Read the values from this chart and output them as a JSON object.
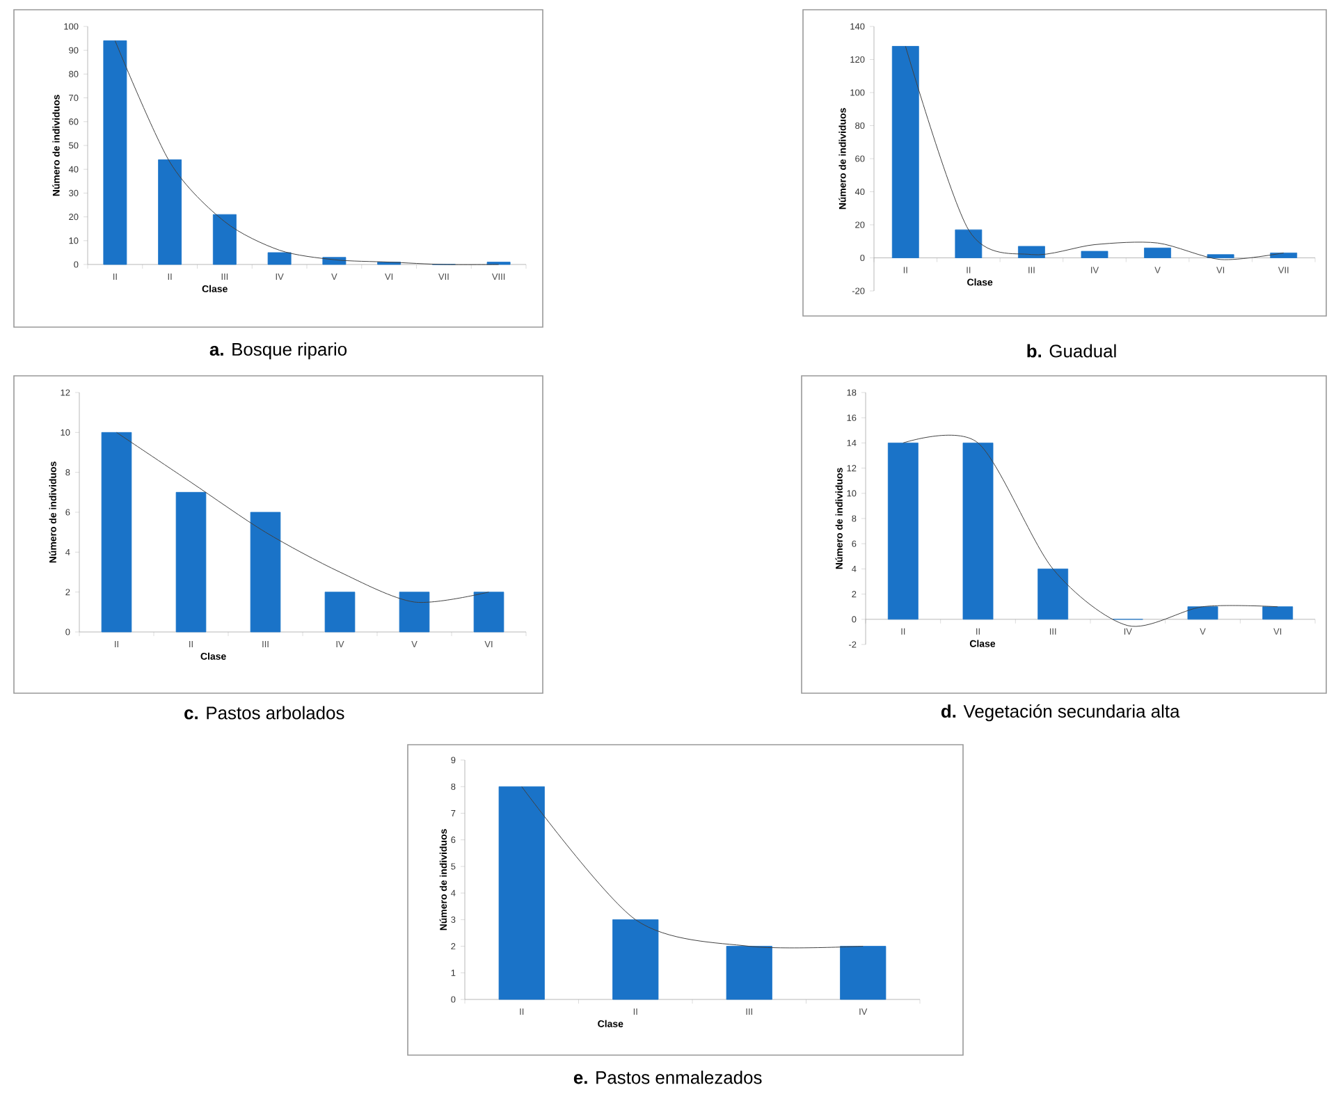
{
  "chart_data": [
    {
      "type": "bar",
      "title": "**a.** Bosque ripario",
      "xlabel": "Clase",
      "ylabel": "Número de individuos",
      "categories": [
        "II",
        "II",
        "III",
        "IV",
        "V",
        "VI",
        "VII",
        "VIII"
      ],
      "ylim": [
        0,
        100
      ],
      "yticks": [
        0,
        10,
        20,
        30,
        40,
        50,
        60,
        70,
        80,
        90,
        100
      ],
      "series": [
        {
          "color": "#1a73c8",
          "values": [
            94,
            44,
            21,
            5,
            3,
            1,
            0,
            1
          ]
        },
        {
          "type": "line",
          "color": "#404040",
          "values": [
            94,
            43,
            18,
            6,
            2,
            1,
            0,
            0
          ]
        }
      ]
    },
    {
      "type": "bar",
      "title": "**b.** Guadual",
      "xlabel": "Clase",
      "ylabel": "Número de individuos",
      "categories": [
        "II",
        "II",
        "III",
        "IV",
        "V",
        "VI",
        "VII"
      ],
      "ylim": [
        -20,
        140
      ],
      "yticks": [
        -20,
        0,
        20,
        40,
        60,
        80,
        100,
        120,
        140
      ],
      "series": [
        {
          "color": "#1a73c8",
          "values": [
            128,
            17,
            7,
            4,
            6,
            2,
            3
          ]
        },
        {
          "type": "line",
          "color": "#404040",
          "values": [
            128,
            17,
            2,
            8,
            9,
            -1,
            3
          ]
        }
      ]
    },
    {
      "type": "bar",
      "title": "**c.** Pastos arbolados",
      "xlabel": "Clase",
      "ylabel": "Número de individuos",
      "categories": [
        "II",
        "II",
        "III",
        "IV",
        "V",
        "VI"
      ],
      "ylim": [
        0,
        12
      ],
      "yticks": [
        0,
        2,
        4,
        6,
        8,
        10,
        12
      ],
      "series": [
        {
          "color": "#1a73c8",
          "values": [
            10,
            7,
            6,
            2,
            2,
            2
          ]
        },
        {
          "type": "line",
          "color": "#404040",
          "values": [
            10,
            7.5,
            5,
            3,
            1.5,
            2
          ]
        }
      ]
    },
    {
      "type": "bar",
      "title": "**d.** Vegetación secundaria alta",
      "xlabel": "Clase",
      "ylabel": "Número de individuos",
      "categories": [
        "II",
        "II",
        "III",
        "IV",
        "V",
        "VI"
      ],
      "ylim": [
        -2,
        18
      ],
      "yticks": [
        -2,
        0,
        2,
        4,
        6,
        8,
        10,
        12,
        14,
        16,
        18
      ],
      "series": [
        {
          "color": "#1a73c8",
          "values": [
            14,
            14,
            4,
            0,
            1,
            1
          ]
        },
        {
          "type": "line",
          "color": "#404040",
          "values": [
            14,
            14,
            4,
            -0.5,
            1,
            1
          ]
        }
      ]
    },
    {
      "type": "bar",
      "title": "**e.** Pastos enmalezados",
      "xlabel": "Clase",
      "ylabel": "Número de individuos",
      "categories": [
        "II",
        "II",
        "III",
        "IV"
      ],
      "ylim": [
        0,
        9
      ],
      "yticks": [
        0,
        1,
        2,
        3,
        4,
        5,
        6,
        7,
        8,
        9
      ],
      "series": [
        {
          "color": "#1a73c8",
          "values": [
            8,
            3,
            2,
            2
          ]
        },
        {
          "type": "line",
          "color": "#404040",
          "values": [
            8,
            3,
            2,
            2
          ]
        }
      ]
    }
  ]
}
